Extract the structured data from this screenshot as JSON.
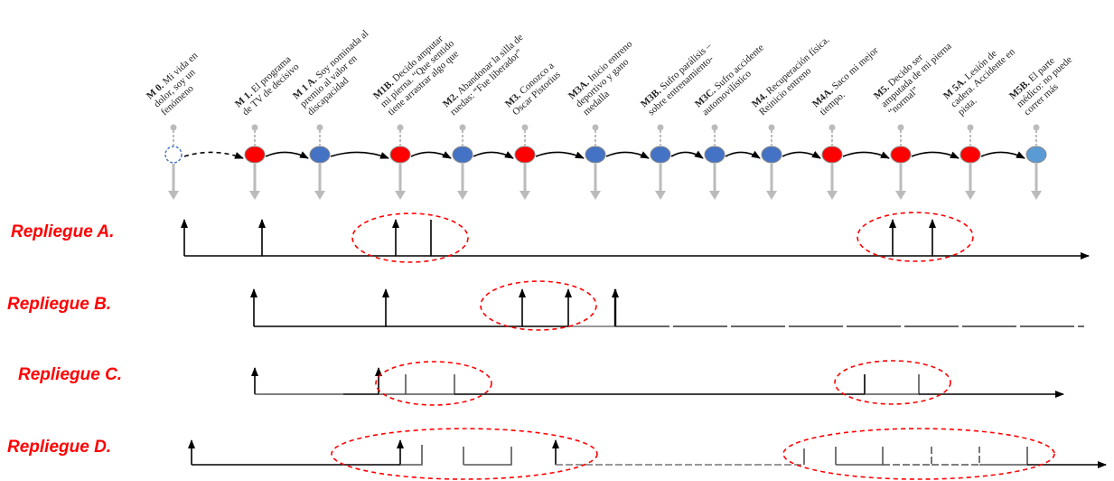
{
  "milestones": [
    {
      "code": "M 0.",
      "text": [
        "Mi vida en",
        "dolor, soy un",
        "fenómeno"
      ],
      "color": "none"
    },
    {
      "code": "M 1.",
      "text": [
        "El programa",
        "de TV de decisivo"
      ],
      "color": "#ff0000"
    },
    {
      "code": "M 1 A.",
      "text": [
        "Soy nominada al",
        "premio al valor en",
        "discapacidad"
      ],
      "color": "#4472c4"
    },
    {
      "code": "M1B.",
      "text": [
        "Decido amputar",
        "mi pierna. “Que sentido",
        "tiene arrastrar algo que"
      ],
      "color": "#ff0000"
    },
    {
      "code": "M2.",
      "text": [
        "Abandonar la silla de",
        "ruedas: “Fue liberador”"
      ],
      "color": "#4472c4"
    },
    {
      "code": "M3.",
      "text": [
        "Conozco a",
        "Oscar Pistorius"
      ],
      "color": "#ff0000"
    },
    {
      "code": "M3A.",
      "text": [
        "Inicio entreno",
        "deportivo y gano",
        "medalla"
      ],
      "color": "#4472c4"
    },
    {
      "code": "M3B.",
      "text": [
        "Sufro parálisis –",
        "sobre entrenamiento-"
      ],
      "color": "#4472c4"
    },
    {
      "code": "M3C.",
      "text": [
        "Sufro accidente",
        "automovilístico"
      ],
      "color": "#4472c4"
    },
    {
      "code": "M4.",
      "text": [
        "Recuperación física.",
        "Reinicio entreno"
      ],
      "color": "#4472c4"
    },
    {
      "code": "M4A.",
      "text": [
        "Saco mi mejor",
        "tiempo."
      ],
      "color": "#ff0000"
    },
    {
      "code": "M5.",
      "text": [
        "Decido ser",
        "amputada de mi pierna",
        "“normal”"
      ],
      "color": "#ff0000"
    },
    {
      "code": "M 5A.",
      "text": [
        "Lesión de",
        "cadera. Accidente en",
        "pista."
      ],
      "color": "#ff0000"
    },
    {
      "code": "M5B.",
      "text": [
        "El parte",
        "médico: no puede",
        "correr más"
      ],
      "color": "#5b9bd5"
    }
  ],
  "rows": [
    {
      "label": "Repliegue A."
    },
    {
      "label": "Repliegue B."
    },
    {
      "label": "Repliegue C."
    },
    {
      "label": "Repliegue D."
    }
  ],
  "colors": {
    "accent_red": "#ff0000",
    "node_blue": "#4472c4",
    "node_light_blue": "#5b9bd5",
    "line": "#000000"
  }
}
